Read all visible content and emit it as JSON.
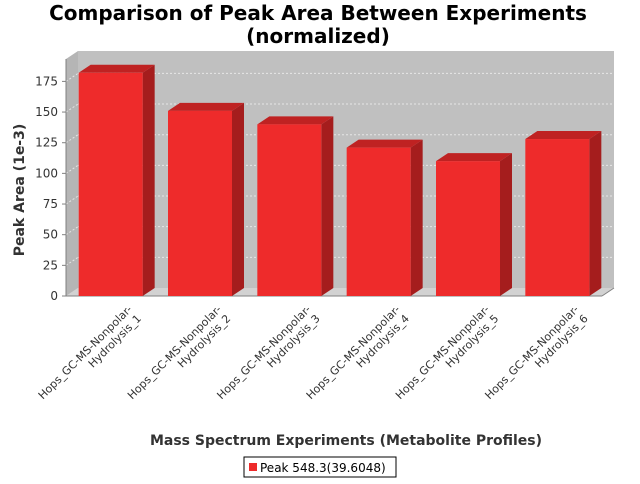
{
  "chart_data": {
    "type": "bar",
    "title": "Comparison of Peak Area Between Experiments",
    "subtitle": "(normalized)",
    "xlabel": "Mass Spectrum Experiments (Metabolite Profiles)",
    "ylabel": "Peak Area (1e-3)",
    "categories": [
      [
        "Hops_GC-MS-Nonpolar-",
        "Hydrolysis_1"
      ],
      [
        "Hops_GC-MS-Nonpolar-",
        "Hydrolysis_2"
      ],
      [
        "Hops_GC-MS-Nonpolar-",
        "Hydrolysis_3"
      ],
      [
        "Hops_GC-MS-Nonpolar-",
        "Hydrolysis_4"
      ],
      [
        "Hops_GC-MS-Nonpolar-",
        "Hydrolysis_5"
      ],
      [
        "Hops_GC-MS-Nonpolar-",
        "Hydrolysis_6"
      ]
    ],
    "series": [
      {
        "name": "Peak 548.3(39.6048)",
        "values": [
          182,
          151,
          140,
          121,
          110,
          128
        ]
      }
    ],
    "yticks": [
      0,
      25,
      50,
      75,
      100,
      125,
      150,
      175
    ],
    "ylim": [
      0,
      190
    ],
    "grid": true,
    "legend": "bottom",
    "colors": {
      "bar_front": "#ee2b2b",
      "bar_top": "#bf2222",
      "bar_side": "#a51d1d",
      "plot_back": "#c0c0c0",
      "plot_floor": "#d2d2d2",
      "grid": "#e6e6e6",
      "axis": "#808080"
    }
  }
}
